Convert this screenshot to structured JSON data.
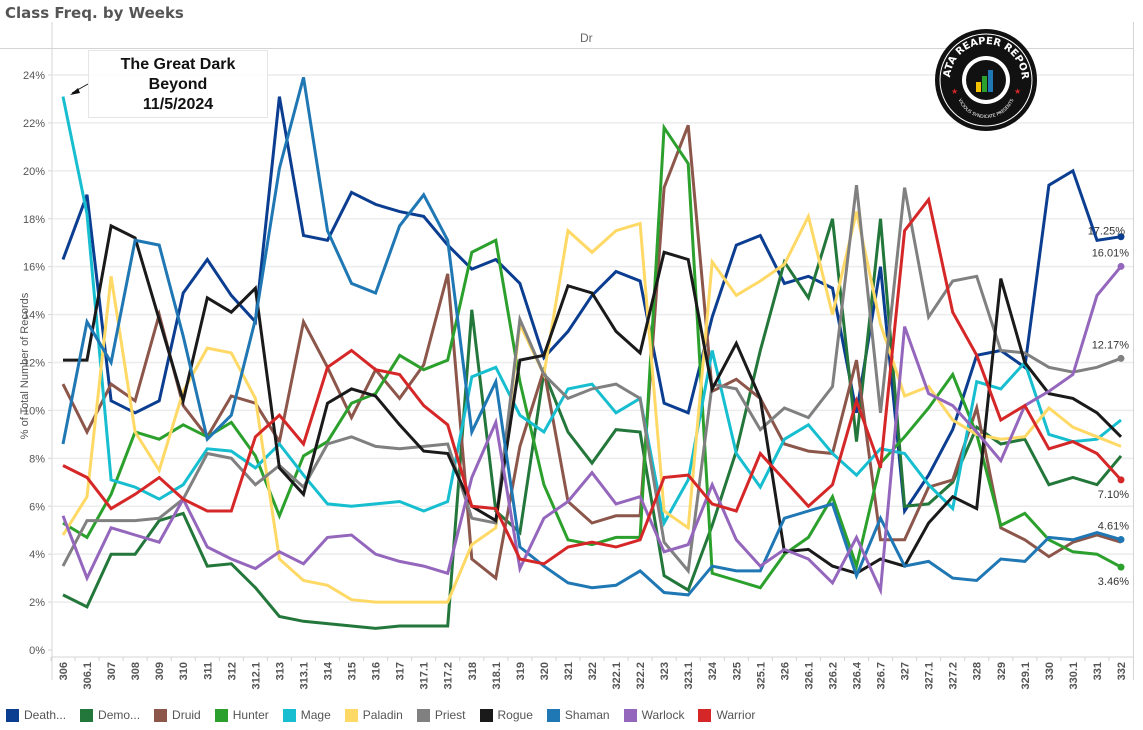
{
  "title": "Class Freq. by Weeks",
  "header": "Dr",
  "annotation": {
    "lines": [
      "The Great Dark",
      "Beyond",
      "11/5/2024"
    ]
  },
  "logo": {
    "text_top": "DATA REAPER REPORT",
    "text_bottom": "VICIOUS SYNDICATE PRESENTS"
  },
  "chart_data": {
    "type": "line",
    "title": "Class Freq. by Weeks",
    "xlabel": "",
    "ylabel": "% of Total Number of Records",
    "ylim": [
      0,
      24
    ],
    "yticks": [
      "0%",
      "2%",
      "4%",
      "6%",
      "8%",
      "10%",
      "12%",
      "14%",
      "16%",
      "18%",
      "20%",
      "22%",
      "24%"
    ],
    "grid": true,
    "legend_position": "bottom",
    "categories": [
      "306",
      "306.1",
      "307",
      "308",
      "309",
      "310",
      "311",
      "312",
      "312.1",
      "313",
      "313.1",
      "314",
      "315",
      "316",
      "317",
      "317.1",
      "317.2",
      "318",
      "318.1",
      "319",
      "320",
      "321",
      "322",
      "322.1",
      "322.2",
      "323",
      "323.1",
      "324",
      "325",
      "325.1",
      "326",
      "326.1",
      "326.2",
      "326.4",
      "326.7",
      "327",
      "327.1",
      "327.2",
      "328",
      "329",
      "329.1",
      "330",
      "330.1",
      "331",
      "332"
    ],
    "series": [
      {
        "name": "Death...",
        "color": "#0b3d91",
        "values": [
          16.3,
          19.0,
          10.4,
          9.9,
          10.4,
          14.9,
          16.3,
          14.8,
          13.7,
          23.1,
          17.3,
          17.1,
          19.1,
          18.6,
          18.3,
          18.1,
          16.9,
          15.9,
          16.3,
          15.3,
          12.2,
          13.3,
          14.8,
          15.8,
          15.4,
          10.3,
          9.9,
          13.9,
          16.9,
          17.3,
          15.3,
          15.6,
          15.1,
          9.9,
          16.0,
          5.8,
          7.3,
          9.2,
          12.3,
          12.5,
          11.8,
          19.4,
          20.0,
          17.1,
          17.25
        ]
      },
      {
        "name": "Demo...",
        "color": "#24773b",
        "values": [
          2.3,
          1.8,
          4.0,
          4.0,
          5.4,
          5.7,
          3.5,
          3.6,
          2.6,
          1.4,
          1.2,
          1.1,
          1.0,
          0.9,
          1.0,
          1.0,
          1.0,
          14.2,
          5.8,
          4.9,
          11.6,
          9.1,
          7.8,
          9.2,
          9.1,
          3.1,
          2.5,
          5.2,
          8.3,
          12.5,
          16.2,
          14.7,
          18.0,
          8.7,
          18.0,
          6.0,
          6.1,
          7.0,
          9.3,
          8.6,
          8.8,
          6.9,
          7.2,
          6.9,
          8.1
        ]
      },
      {
        "name": "Druid",
        "color": "#8c564b",
        "values": [
          11.1,
          9.1,
          11.1,
          10.4,
          14.0,
          10.2,
          8.9,
          10.6,
          10.3,
          8.7,
          13.7,
          11.8,
          9.7,
          11.7,
          10.5,
          11.9,
          15.7,
          3.8,
          3.0,
          8.5,
          11.7,
          6.2,
          5.3,
          5.6,
          5.6,
          19.3,
          21.9,
          10.8,
          11.3,
          10.5,
          8.6,
          8.3,
          8.2,
          12.1,
          4.6,
          4.6,
          6.8,
          7.1,
          10.1,
          5.1,
          4.6,
          3.9,
          4.5,
          4.8,
          4.5
        ]
      },
      {
        "name": "Hunter",
        "color": "#2ca02c",
        "values": [
          5.3,
          4.7,
          6.5,
          9.1,
          8.8,
          9.4,
          8.9,
          9.5,
          8.1,
          5.6,
          8.1,
          8.7,
          10.3,
          10.7,
          12.3,
          11.7,
          12.1,
          16.6,
          17.1,
          11.2,
          6.9,
          4.6,
          4.4,
          4.7,
          4.7,
          21.8,
          20.3,
          3.2,
          2.9,
          2.6,
          4.0,
          4.7,
          6.4,
          3.5,
          7.8,
          8.9,
          10.1,
          11.5,
          9.0,
          5.2,
          5.7,
          4.6,
          4.1,
          4.0,
          3.46
        ]
      },
      {
        "name": "Mage",
        "color": "#17becf",
        "values": [
          23.1,
          18.2,
          7.1,
          6.8,
          6.3,
          6.9,
          8.4,
          8.3,
          7.6,
          8.6,
          7.3,
          6.1,
          6.0,
          6.1,
          6.2,
          5.8,
          6.2,
          11.4,
          11.8,
          9.8,
          9.1,
          10.9,
          11.1,
          9.9,
          10.5,
          5.3,
          7.1,
          12.5,
          8.2,
          6.8,
          8.8,
          9.4,
          8.2,
          7.3,
          8.4,
          8.2,
          6.9,
          5.9,
          11.2,
          10.9,
          12.0,
          9.0,
          8.7,
          8.8,
          9.6
        ]
      },
      {
        "name": "Paladin",
        "color": "#ffd966",
        "values": [
          4.8,
          6.4,
          15.6,
          9.1,
          7.5,
          10.8,
          12.6,
          12.4,
          10.5,
          3.8,
          2.9,
          2.7,
          2.1,
          2.0,
          2.0,
          2.0,
          2.0,
          4.4,
          5.1,
          13.6,
          11.5,
          17.5,
          16.6,
          17.5,
          17.8,
          5.8,
          5.1,
          16.2,
          14.8,
          15.4,
          16.1,
          18.1,
          14.0,
          18.3,
          13.6,
          10.6,
          11.0,
          9.6,
          9.0,
          8.8,
          8.9,
          10.1,
          9.3,
          8.9,
          8.5
        ]
      },
      {
        "name": "Priest",
        "color": "#808080",
        "values": [
          3.5,
          5.4,
          5.4,
          5.4,
          5.5,
          6.3,
          8.2,
          8.0,
          6.9,
          7.7,
          6.8,
          8.6,
          8.9,
          8.5,
          8.4,
          8.5,
          8.6,
          5.5,
          5.3,
          13.8,
          11.5,
          10.5,
          10.9,
          11.1,
          10.5,
          4.5,
          3.3,
          11.1,
          10.9,
          9.2,
          10.1,
          9.7,
          11.0,
          19.4,
          9.9,
          19.3,
          13.9,
          15.4,
          15.6,
          12.5,
          12.4,
          11.8,
          11.6,
          11.8,
          12.17
        ]
      },
      {
        "name": "Rogue",
        "color": "#1a1a1a",
        "values": [
          12.1,
          12.1,
          17.7,
          17.2,
          13.8,
          10.4,
          14.7,
          14.1,
          15.1,
          7.6,
          6.5,
          10.3,
          10.9,
          10.6,
          9.4,
          8.3,
          8.2,
          6.0,
          5.4,
          12.1,
          12.3,
          15.2,
          14.9,
          13.3,
          12.4,
          16.6,
          16.3,
          10.9,
          12.8,
          10.5,
          4.1,
          4.2,
          3.5,
          3.2,
          3.8,
          3.5,
          5.3,
          6.4,
          5.9,
          15.5,
          12.0,
          10.7,
          10.5,
          9.9,
          8.9
        ]
      },
      {
        "name": "Shaman",
        "color": "#1f77b4",
        "values": [
          8.6,
          13.7,
          12.0,
          17.1,
          16.9,
          13.1,
          8.8,
          9.8,
          13.8,
          20.1,
          23.9,
          17.5,
          15.3,
          14.9,
          17.7,
          19.0,
          17.1,
          9.1,
          11.2,
          4.3,
          3.5,
          2.8,
          2.6,
          2.7,
          3.3,
          2.4,
          2.3,
          3.5,
          3.3,
          3.3,
          5.5,
          5.8,
          6.1,
          3.1,
          5.5,
          3.5,
          3.7,
          3.0,
          2.9,
          3.8,
          3.7,
          4.7,
          4.6,
          4.9,
          4.61
        ]
      },
      {
        "name": "Warlock",
        "color": "#9467bd",
        "values": [
          5.6,
          3.0,
          5.1,
          4.8,
          4.5,
          6.3,
          4.3,
          3.8,
          3.4,
          4.1,
          3.6,
          4.7,
          4.8,
          4.0,
          3.7,
          3.5,
          3.2,
          7.2,
          9.5,
          3.4,
          5.5,
          6.2,
          7.4,
          6.1,
          6.4,
          4.1,
          4.4,
          6.9,
          4.6,
          3.5,
          4.2,
          3.8,
          2.8,
          4.7,
          2.5,
          13.5,
          10.7,
          10.2,
          9.1,
          7.9,
          10.2,
          10.8,
          11.5,
          14.8,
          16.01
        ]
      },
      {
        "name": "Warrior",
        "color": "#d62728",
        "values": [
          7.7,
          7.2,
          5.9,
          6.5,
          7.2,
          6.3,
          5.8,
          5.8,
          8.9,
          9.8,
          8.6,
          11.8,
          12.5,
          11.7,
          11.5,
          10.2,
          9.4,
          6.0,
          5.9,
          3.8,
          3.6,
          4.3,
          4.5,
          4.3,
          4.6,
          7.2,
          7.3,
          6.1,
          5.8,
          8.2,
          7.1,
          6.0,
          6.9,
          10.4,
          7.6,
          17.5,
          18.8,
          14.1,
          12.3,
          9.6,
          10.2,
          8.4,
          8.7,
          8.2,
          7.1
        ]
      }
    ],
    "end_labels": [
      {
        "series": "Death...",
        "text": "17.25%"
      },
      {
        "series": "Warlock",
        "text": "16.01%"
      },
      {
        "series": "Priest",
        "text": "12.17%"
      },
      {
        "series": "Warrior",
        "text": "7.10%"
      },
      {
        "series": "Shaman",
        "text": "4.61%"
      },
      {
        "series": "Hunter",
        "text": "3.46%"
      }
    ]
  }
}
